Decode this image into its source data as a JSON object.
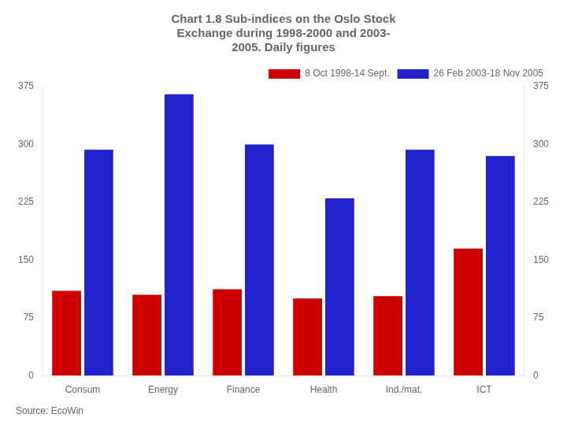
{
  "chart_data": {
    "type": "bar",
    "title": "Chart 1.8 Sub-indices on the Oslo Stock\nExchange during 1998-2000 and 2003-\n2005. Daily figures",
    "categories": [
      "Consum",
      "Energy",
      "Finance",
      "Health",
      "Ind./mat.",
      "ICT"
    ],
    "series": [
      {
        "name": "8 Oct 1998-14 Sept.",
        "color": "#cc0000",
        "values": [
          110,
          105,
          112,
          100,
          103,
          165
        ]
      },
      {
        "name": "26 Feb 2003-18 Nov 2005",
        "color": "#2222cc",
        "values": [
          293,
          365,
          300,
          230,
          293,
          285
        ]
      }
    ],
    "ylim": [
      0,
      375
    ],
    "yticks": [
      0,
      75,
      150,
      225,
      300,
      375
    ],
    "y2lim": [
      0,
      375
    ],
    "y2ticks": [
      0,
      75,
      150,
      225,
      300,
      375
    ],
    "annotations": [
      "Source: EcoWin"
    ],
    "legend": "upper right",
    "grid": false
  }
}
